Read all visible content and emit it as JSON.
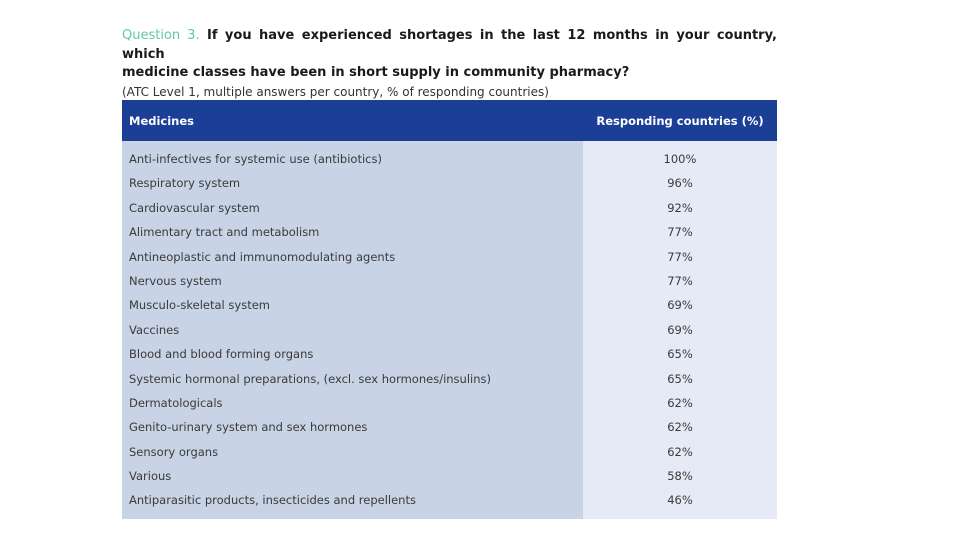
{
  "question": {
    "label": "Question 3.",
    "text_line1": "If you have experienced shortages in the last 12 months in your country, which",
    "text_line2": "medicine classes have been in short supply in community pharmacy?",
    "subtitle": "(ATC Level 1, multiple answers per country, % of responding countries)"
  },
  "table": {
    "headers": {
      "medicines": "Medicines",
      "responding": "Responding countries (%)"
    },
    "rows": [
      {
        "medicine": "Anti-infectives for systemic use (antibiotics)",
        "pct": "100%"
      },
      {
        "medicine": "Respiratory system",
        "pct": "96%"
      },
      {
        "medicine": "Cardiovascular system",
        "pct": "92%"
      },
      {
        "medicine": "Alimentary tract and metabolism",
        "pct": "77%"
      },
      {
        "medicine": "Antineoplastic and immunomodulating agents",
        "pct": "77%"
      },
      {
        "medicine": "Nervous system",
        "pct": "77%"
      },
      {
        "medicine": "Musculo-skeletal system",
        "pct": "69%"
      },
      {
        "medicine": "Vaccines",
        "pct": "69%"
      },
      {
        "medicine": "Blood and blood forming organs",
        "pct": "65%"
      },
      {
        "medicine": "Systemic hormonal preparations, (excl. sex hormones/insulins)",
        "pct": "65%"
      },
      {
        "medicine": "Dermatologicals",
        "pct": "62%"
      },
      {
        "medicine": "Genito-urinary system and sex hormones",
        "pct": "62%"
      },
      {
        "medicine": "Sensory organs",
        "pct": "62%"
      },
      {
        "medicine": "Various",
        "pct": "58%"
      },
      {
        "medicine": "Antiparasitic products, insecticides and repellents",
        "pct": "46%"
      }
    ]
  },
  "colors": {
    "header_bg": "#1b3f96",
    "question_label": "#5fc9a8",
    "medicine_column_bg": "#c8d3e6",
    "pct_column_bg": "#e6eaf7"
  }
}
